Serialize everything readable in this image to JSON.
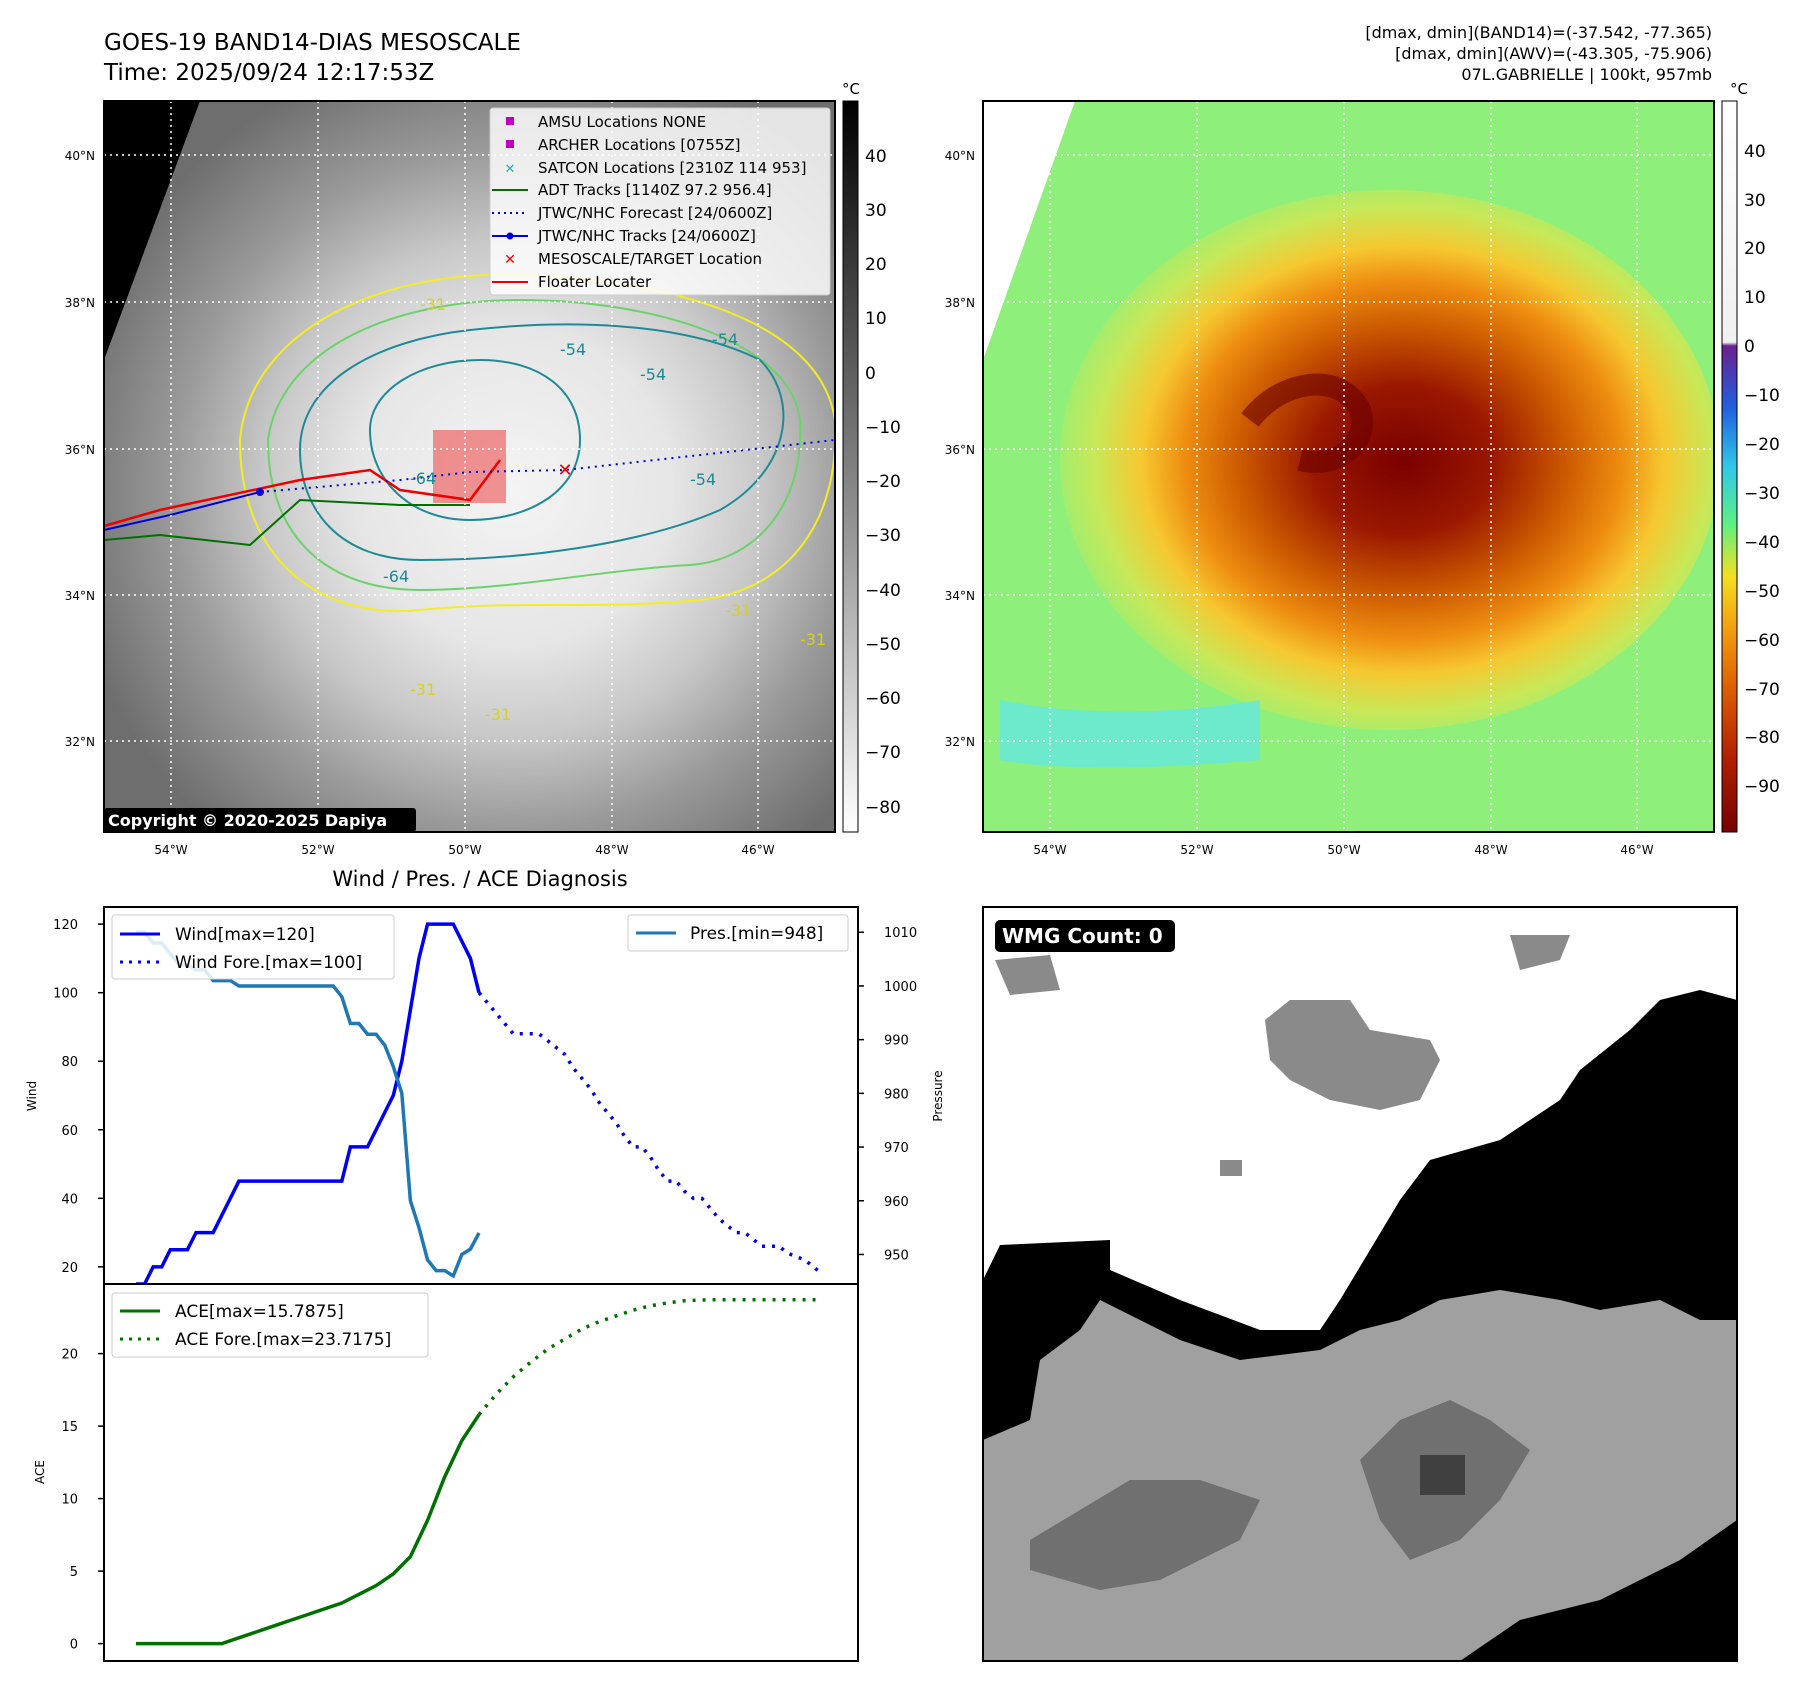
{
  "header": {
    "title_line1": "GOES-19 BAND14-DIAS MESOSCALE",
    "title_line2": "Time: 2025/09/24 12:17:53Z",
    "info_line1": "[dmax, dmin](BAND14)=(-37.542, -77.365)",
    "info_line2": "[dmax, dmin](AWV)=(-43.305, -75.906)",
    "info_line3": "07L.GABRIELLE | 100kt, 957mb"
  },
  "ir_panel": {
    "copyright": "Copyright © 2020-2025 Dapiya",
    "lat_labels": [
      "40°N",
      "38°N",
      "36°N",
      "34°N",
      "32°N"
    ],
    "lon_labels": [
      "54°W",
      "52°W",
      "50°W",
      "48°W",
      "46°W"
    ],
    "contour_labels": [
      "-31",
      "-54",
      "-54",
      "-64",
      "-64",
      "-54",
      "-31",
      "-31",
      "-31",
      "-31",
      "-54"
    ],
    "legend": [
      {
        "label": "AMSU Locations NONE",
        "color": "#c000c0",
        "marker": "square"
      },
      {
        "label": "ARCHER Locations [0755Z]",
        "color": "#c000c0",
        "marker": "square"
      },
      {
        "label": "SATCON Locations [2310Z 114 953]",
        "color": "#20b0b0",
        "marker": "x"
      },
      {
        "label": "ADT Tracks [1140Z 97.2 956.4]",
        "color": "#007000",
        "marker": "line"
      },
      {
        "label": "JTWC/NHC Forecast [24/0600Z]",
        "color": "#0000dd",
        "marker": "dotted"
      },
      {
        "label": "JTWC/NHC Tracks [24/0600Z]",
        "color": "#0000dd",
        "marker": "line-dot"
      },
      {
        "label": "MESOSCALE/TARGET Location",
        "color": "#ee0000",
        "marker": "x"
      },
      {
        "label": "Floater Locater",
        "color": "#ee0000",
        "marker": "line"
      }
    ],
    "colorbar": {
      "unit": "°C",
      "ticks": [
        "40",
        "30",
        "20",
        "10",
        "0",
        "−10",
        "−20",
        "−30",
        "−40",
        "−50",
        "−60",
        "−70",
        "−80"
      ]
    }
  },
  "wv_panel": {
    "lat_labels": [
      "40°N",
      "38°N",
      "36°N",
      "34°N",
      "32°N"
    ],
    "lon_labels": [
      "54°W",
      "52°W",
      "50°W",
      "48°W",
      "46°W"
    ],
    "colorbar": {
      "unit": "°C",
      "ticks": [
        "40",
        "30",
        "20",
        "10",
        "0",
        "−10",
        "−20",
        "−30",
        "−40",
        "−50",
        "−60",
        "−70",
        "−80",
        "−90"
      ]
    }
  },
  "wmg_panel": {
    "label": "WMG Count: 0"
  },
  "chart_data": [
    {
      "type": "line",
      "title": "Wind / Pres. / ACE Diagnosis",
      "ylabel": "Wind",
      "y2label": "Pressure",
      "ylim": [
        15,
        125
      ],
      "y2lim": [
        944.5,
        1014.7
      ],
      "yticks": [
        20,
        40,
        60,
        80,
        100,
        120
      ],
      "y2ticks": [
        950,
        960,
        970,
        980,
        990,
        1000,
        1010
      ],
      "legend_left": [
        "Wind[max=120]",
        "Wind Fore.[max=100]"
      ],
      "legend_right": [
        "Pres.[min=948]"
      ],
      "series": [
        {
          "name": "Wind[max=120]",
          "color": "#0000ee",
          "style": "solid",
          "x": [
            0,
            1,
            2,
            3,
            4,
            5,
            6,
            7,
            8,
            9,
            10,
            11,
            12,
            13,
            14,
            15,
            16,
            17,
            18,
            19,
            20,
            21,
            22,
            23,
            24,
            25,
            26,
            27,
            28,
            29,
            30,
            31,
            32,
            33,
            34,
            35,
            36,
            37,
            38,
            39,
            40
          ],
          "values": [
            15,
            15,
            20,
            20,
            25,
            25,
            25,
            30,
            30,
            30,
            35,
            40,
            45,
            45,
            45,
            45,
            45,
            45,
            45,
            45,
            45,
            45,
            45,
            45,
            45,
            55,
            55,
            55,
            60,
            65,
            70,
            80,
            95,
            110,
            120,
            120,
            120,
            120,
            115,
            110,
            100
          ]
        },
        {
          "name": "Wind Fore.[max=100]",
          "color": "#0000ee",
          "style": "dotted",
          "x": [
            40,
            41,
            42,
            43,
            44,
            45,
            46,
            47,
            48,
            49,
            50,
            51,
            52,
            53,
            54,
            55,
            56,
            57,
            58,
            59,
            60,
            61,
            62,
            63,
            64,
            65,
            66,
            67,
            68,
            69,
            70,
            71,
            72,
            73,
            74,
            75,
            76,
            77,
            78,
            79,
            80
          ],
          "values": [
            100,
            97,
            94,
            91,
            88,
            88,
            88,
            88,
            86,
            84,
            82,
            78,
            75,
            72,
            68,
            65,
            62,
            58,
            55,
            55,
            52,
            48,
            45,
            45,
            42,
            40,
            40,
            37,
            34,
            32,
            30,
            30,
            28,
            26,
            26,
            26,
            24,
            23,
            22,
            20,
            18
          ]
        },
        {
          "name": "Pres.[min=948]",
          "color": "#1f77b4",
          "style": "solid",
          "axis": "right",
          "x": [
            0,
            1,
            2,
            3,
            4,
            5,
            6,
            7,
            8,
            9,
            10,
            11,
            12,
            13,
            14,
            15,
            16,
            17,
            18,
            19,
            20,
            21,
            22,
            23,
            24,
            25,
            26,
            27,
            28,
            29,
            30,
            31,
            32,
            33,
            34,
            35,
            36,
            37,
            38,
            39,
            40
          ],
          "values": [
            1010,
            1010,
            1008,
            1008,
            1006,
            1004,
            1004,
            1003,
            1003,
            1001,
            1001,
            1001,
            1000,
            1000,
            1000,
            1000,
            1000,
            1000,
            1000,
            1000,
            1000,
            1000,
            1000,
            1000,
            998,
            993,
            993,
            991,
            991,
            989,
            985,
            980,
            960,
            955,
            949,
            947,
            947,
            946,
            950,
            951,
            954
          ]
        }
      ]
    },
    {
      "type": "line",
      "ylabel": "ACE",
      "ylim": [
        -1.2,
        24.8
      ],
      "yticks": [
        0,
        5,
        10,
        15,
        20
      ],
      "series": [
        {
          "name": "ACE[max=15.7875]",
          "color": "#007000",
          "style": "solid",
          "x": [
            0,
            2,
            4,
            6,
            8,
            10,
            12,
            14,
            16,
            18,
            20,
            22,
            24,
            26,
            28,
            30,
            32,
            34,
            36,
            38,
            40
          ],
          "values": [
            0,
            0,
            0,
            0,
            0,
            0,
            0.4,
            0.8,
            1.2,
            1.6,
            2.0,
            2.4,
            2.8,
            3.4,
            4.0,
            4.8,
            6.0,
            8.5,
            11.5,
            14.0,
            15.7875
          ]
        },
        {
          "name": "ACE Fore.[max=23.7175]",
          "color": "#007000",
          "style": "dotted",
          "x": [
            40,
            42,
            44,
            46,
            48,
            50,
            52,
            54,
            56,
            58,
            60,
            62,
            64,
            66,
            68,
            70,
            72,
            74,
            76,
            78,
            80
          ],
          "values": [
            15.7875,
            17.2,
            18.4,
            19.4,
            20.3,
            21.0,
            21.7,
            22.2,
            22.6,
            23.0,
            23.3,
            23.5,
            23.65,
            23.7,
            23.7175,
            23.7175,
            23.7175,
            23.7175,
            23.7175,
            23.7175,
            23.7175
          ]
        }
      ]
    }
  ]
}
